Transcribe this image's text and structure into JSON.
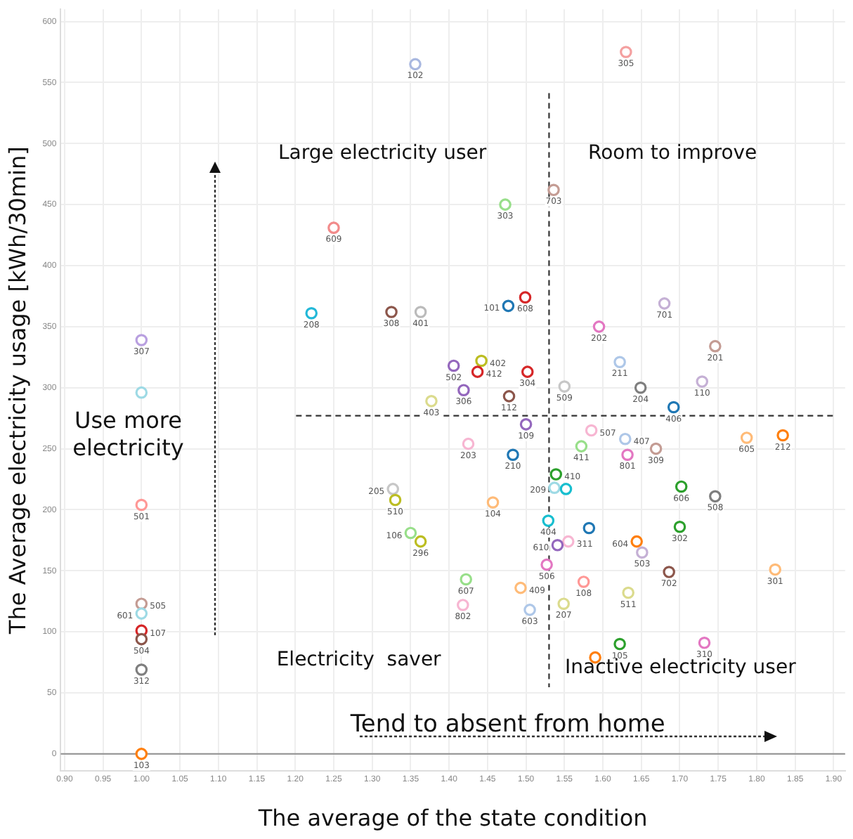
{
  "chart_data": {
    "type": "scatter",
    "xlabel": "The average of the state condition",
    "ylabel": "The Average electricity usage [kWh/30min]",
    "x": [
      1.356,
      1.25,
      1.221,
      1.325,
      1.363,
      1.0,
      1.406,
      1.63,
      1.536,
      1.473,
      1.499,
      1.477,
      1.68,
      1.595,
      1.746,
      1.442,
      1.437,
      1.502,
      1.622,
      1.419,
      1.478,
      1.55,
      1.649,
      1.729,
      1.692,
      1.5,
      1.585,
      1.629,
      1.669,
      1.787,
      1.834,
      1.425,
      1.572,
      1.632,
      1.483,
      1.539,
      1.537,
      1.552,
      1.702,
      1.746,
      1.457,
      1.529,
      1.582,
      1.7,
      1.644,
      1.555,
      1.541,
      1.651,
      1.527,
      1.686,
      1.824,
      1.422,
      1.493,
      1.575,
      1.633,
      1.418,
      1.505,
      1.549,
      1.622,
      1.732,
      1.59,
      1.377,
      1.327,
      1.33,
      1.35,
      1.363,
      1.0,
      1.0,
      1.0,
      1.0,
      1.0,
      1.0,
      1.0,
      1.0
    ],
    "values": [
      565,
      431,
      361,
      362,
      362,
      339,
      318,
      575,
      462,
      450,
      374,
      367,
      369,
      350,
      334,
      322,
      313,
      313,
      321,
      298,
      293,
      301,
      300,
      305,
      284,
      270,
      265,
      258,
      250,
      259,
      261,
      254,
      252,
      245,
      245,
      229,
      218,
      217,
      219,
      211,
      206,
      191,
      185,
      186,
      174,
      174,
      171,
      165,
      155,
      149,
      151,
      143,
      136,
      141,
      132,
      122,
      118,
      123,
      90,
      91,
      79,
      289,
      217,
      208,
      181,
      174,
      204,
      123,
      115,
      101,
      94,
      69,
      0,
      296
    ],
    "colors": [
      "#a9b8e0",
      "#f28b8b",
      "#22b8d8",
      "#8c564b",
      "#bbbbbb",
      "#b9a0e0",
      "#9467bd",
      "#f4a0a0",
      "#c49c94",
      "#98df8a",
      "#d62728",
      "#1f77b4",
      "#c5b0d5",
      "#e377c2",
      "#c49c94",
      "#bcbd22",
      "#d62728",
      "#d62728",
      "#aec7e8",
      "#9467bd",
      "#8c564b",
      "#c7c7c7",
      "#7f7f7f",
      "#c5b0d5",
      "#1f77b4",
      "#9467bd",
      "#f7b6d2",
      "#aec7e8",
      "#c49c94",
      "#ffbb78",
      "#ff7f0e",
      "#f7b6d2",
      "#98df8a",
      "#e377c2",
      "#1f77b4",
      "#2ca02c",
      "#9edae5",
      "#17becf",
      "#2ca02c",
      "#7f7f7f",
      "#ffbb78",
      "#17becf",
      "#1f77b4",
      "#2ca02c",
      "#ff7f0e",
      "#f7b6d2",
      "#9467bd",
      "#c5b0d5",
      "#e377c2",
      "#8c564b",
      "#ffbb78",
      "#98df8a",
      "#ffbb78",
      "#ff9896",
      "#dbdb8d",
      "#f7b6d2",
      "#aec7e8",
      "#dbdb8d",
      "#2ca02c",
      "#e377c2",
      "#ff7f0e",
      "#dbdb8d",
      "#c7c7c7",
      "#bcbd22",
      "#98df8a",
      "#bcbd22",
      "#ff9896",
      "#c49c94",
      "#9edae5",
      "#d62728",
      "#8c564b",
      "#7f7f7f",
      "#ff7f0e",
      "#9edae5"
    ],
    "marker": "circle",
    "grid": true,
    "xlim": [
      0.895,
      1.915
    ],
    "xticks": [
      {
        "value": 0.9,
        "label": "0.90"
      },
      0.95,
      {
        "value": 1.0,
        "label": "1.00"
      },
      1.05,
      {
        "value": 1.1,
        "label": "1.10"
      },
      1.15,
      {
        "value": 1.2,
        "label": "1.20"
      },
      1.25,
      {
        "value": 1.3,
        "label": "1.30"
      },
      1.35,
      {
        "value": 1.4,
        "label": "1.40"
      },
      1.45,
      {
        "value": 1.5,
        "label": "1.50"
      },
      1.55,
      {
        "value": 1.6,
        "label": "1.60"
      },
      1.65,
      {
        "value": 1.7,
        "label": "1.70"
      },
      1.75,
      {
        "value": 1.8,
        "label": "1.80"
      },
      1.85,
      {
        "value": 1.9,
        "label": "1.90"
      }
    ],
    "ylim": [
      -14,
      610
    ],
    "yticks": [
      0,
      50,
      100,
      150,
      200,
      250,
      300,
      350,
      400,
      450,
      500,
      550,
      600
    ],
    "ref_lines": [
      {
        "axis": "x",
        "value": 1.53,
        "color": "#333333",
        "line_style": "dashed"
      },
      {
        "axis": "y",
        "value": 277,
        "color": "#333333",
        "line_style": "dashed"
      },
      {
        "axis": "y",
        "value": 0,
        "color": "#999999",
        "line_style": "solid"
      }
    ],
    "annotations": [
      {
        "text": "102",
        "x": 1.356,
        "y": 565
      },
      {
        "text": "609",
        "x": 1.25,
        "y": 431
      },
      {
        "text": "208",
        "x": 1.221,
        "y": 361
      },
      {
        "text": "308",
        "x": 1.325,
        "y": 362
      },
      {
        "text": "401",
        "x": 1.363,
        "y": 362
      },
      {
        "text": "307",
        "x": 1.0,
        "y": 339
      },
      {
        "text": "502",
        "x": 1.406,
        "y": 318
      },
      {
        "text": "305",
        "x": 1.63,
        "y": 575
      },
      {
        "text": "703",
        "x": 1.536,
        "y": 462
      },
      {
        "text": "303",
        "x": 1.473,
        "y": 450
      },
      {
        "text": "608",
        "x": 1.499,
        "y": 374
      },
      {
        "text": "101",
        "x": 1.477,
        "y": 367
      },
      {
        "text": "701",
        "x": 1.68,
        "y": 369
      },
      {
        "text": "202",
        "x": 1.595,
        "y": 350
      },
      {
        "text": "201",
        "x": 1.746,
        "y": 334
      },
      {
        "text": "402",
        "x": 1.442,
        "y": 322
      },
      {
        "text": "412",
        "x": 1.437,
        "y": 313
      },
      {
        "text": "304",
        "x": 1.502,
        "y": 313
      },
      {
        "text": "211",
        "x": 1.622,
        "y": 321
      },
      {
        "text": "306",
        "x": 1.419,
        "y": 298
      },
      {
        "text": "112",
        "x": 1.478,
        "y": 293
      },
      {
        "text": "509",
        "x": 1.55,
        "y": 301
      },
      {
        "text": "204",
        "x": 1.649,
        "y": 300
      },
      {
        "text": "110",
        "x": 1.729,
        "y": 305
      },
      {
        "text": "406",
        "x": 1.692,
        "y": 284
      },
      {
        "text": "109",
        "x": 1.5,
        "y": 270
      },
      {
        "text": "507",
        "x": 1.585,
        "y": 265
      },
      {
        "text": "407",
        "x": 1.629,
        "y": 258
      },
      {
        "text": "309",
        "x": 1.669,
        "y": 250
      },
      {
        "text": "605",
        "x": 1.787,
        "y": 259
      },
      {
        "text": "212",
        "x": 1.834,
        "y": 261
      },
      {
        "text": "203",
        "x": 1.425,
        "y": 254
      },
      {
        "text": "411",
        "x": 1.572,
        "y": 252
      },
      {
        "text": "801",
        "x": 1.632,
        "y": 245
      },
      {
        "text": "210",
        "x": 1.483,
        "y": 245
      },
      {
        "text": "410",
        "x": 1.539,
        "y": 229
      },
      {
        "text": "209",
        "x": 1.537,
        "y": 218
      },
      {
        "text": "606",
        "x": 1.702,
        "y": 219
      },
      {
        "text": "508",
        "x": 1.746,
        "y": 211
      },
      {
        "text": "104",
        "x": 1.457,
        "y": 206
      },
      {
        "text": "404",
        "x": 1.529,
        "y": 191
      },
      {
        "text": "302",
        "x": 1.7,
        "y": 186
      },
      {
        "text": "604",
        "x": 1.644,
        "y": 174
      },
      {
        "text": "311",
        "x": 1.555,
        "y": 174
      },
      {
        "text": "610",
        "x": 1.541,
        "y": 171
      },
      {
        "text": "503",
        "x": 1.651,
        "y": 165
      },
      {
        "text": "506",
        "x": 1.527,
        "y": 155
      },
      {
        "text": "702",
        "x": 1.686,
        "y": 149
      },
      {
        "text": "301",
        "x": 1.824,
        "y": 151
      },
      {
        "text": "607",
        "x": 1.422,
        "y": 143
      },
      {
        "text": "409",
        "x": 1.493,
        "y": 136
      },
      {
        "text": "108",
        "x": 1.575,
        "y": 141
      },
      {
        "text": "511",
        "x": 1.633,
        "y": 132
      },
      {
        "text": "802",
        "x": 1.418,
        "y": 122
      },
      {
        "text": "603",
        "x": 1.505,
        "y": 118
      },
      {
        "text": "207",
        "x": 1.549,
        "y": 123
      },
      {
        "text": "105",
        "x": 1.622,
        "y": 90
      },
      {
        "text": "310",
        "x": 1.732,
        "y": 91
      },
      {
        "text": "403",
        "x": 1.377,
        "y": 289
      },
      {
        "text": "205",
        "x": 1.327,
        "y": 217
      },
      {
        "text": "510",
        "x": 1.33,
        "y": 208
      },
      {
        "text": "106",
        "x": 1.35,
        "y": 181
      },
      {
        "text": "296",
        "x": 1.363,
        "y": 174
      },
      {
        "text": "501",
        "x": 1.0,
        "y": 204
      },
      {
        "text": "505",
        "x": 1.0,
        "y": 123
      },
      {
        "text": "601",
        "x": 1.0,
        "y": 115
      },
      {
        "text": "107",
        "x": 1.0,
        "y": 101
      },
      {
        "text": "504",
        "x": 1.0,
        "y": 94
      },
      {
        "text": "312",
        "x": 1.0,
        "y": 69
      },
      {
        "text": "103",
        "x": 1.0,
        "y": 0
      },
      "Large electricity user",
      "Room to improve",
      "Use more electricity",
      "Electricity  saver",
      "Inactive electricity user",
      "Tend to absent from home"
    ]
  }
}
